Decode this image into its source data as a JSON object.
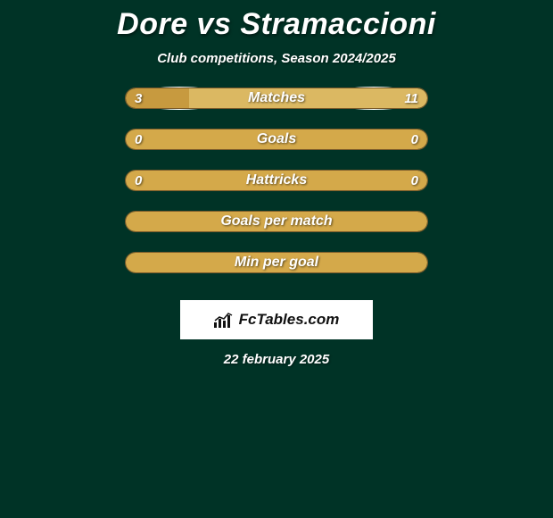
{
  "title": "Dore vs Stramaccioni",
  "subtitle": "Club competitions, Season 2024/2025",
  "colors": {
    "background": "#003326",
    "bar_fill_primary": "#c79a3f",
    "bar_fill_secondary": "#dbb862",
    "bar_single": "#d4a94a",
    "bar_border": "#7a5a2a",
    "ellipse": "#ffffff",
    "logo_bg": "#ffffff",
    "logo_text": "#111111"
  },
  "bars": [
    {
      "label": "Matches",
      "left_val": "3",
      "right_val": "11",
      "left_pct": 21,
      "left_color": "#c79a3f",
      "right_color": "#dbb862",
      "ellipse": "large"
    },
    {
      "label": "Goals",
      "left_val": "0",
      "right_val": "0",
      "left_pct": 0,
      "left_color": "#d4a94a",
      "right_color": "#d4a94a",
      "ellipse": "small"
    },
    {
      "label": "Hattricks",
      "left_val": "0",
      "right_val": "0",
      "left_pct": 0,
      "left_color": "#d4a94a",
      "right_color": "#d4a94a",
      "ellipse": null
    },
    {
      "label": "Goals per match",
      "left_val": "",
      "right_val": "",
      "left_pct": 0,
      "left_color": "#d4a94a",
      "right_color": "#d4a94a",
      "ellipse": null
    },
    {
      "label": "Min per goal",
      "left_val": "",
      "right_val": "",
      "left_pct": 0,
      "left_color": "#d4a94a",
      "right_color": "#d4a94a",
      "ellipse": null
    }
  ],
  "logo": {
    "text": "FcTables.com"
  },
  "date": "22 february 2025"
}
